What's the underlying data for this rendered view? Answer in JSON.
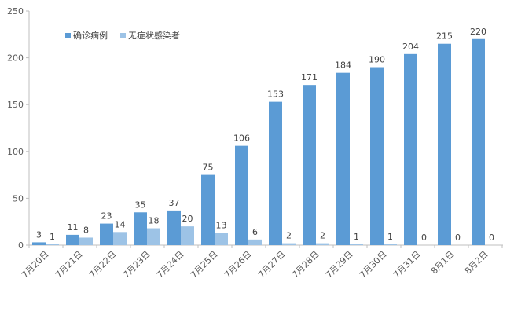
{
  "chart_data": {
    "type": "bar",
    "categories": [
      "7月20日",
      "7月21日",
      "7月22日",
      "7月23日",
      "7月24日",
      "7月25日",
      "7月26日",
      "7月27日",
      "7月28日",
      "7月29日",
      "7月30日",
      "7月31日",
      "8月1日",
      "8月2日"
    ],
    "series": [
      {
        "name": "确诊病例",
        "color": "#5b9bd5",
        "values": [
          3,
          11,
          23,
          35,
          37,
          75,
          106,
          153,
          171,
          184,
          190,
          204,
          215,
          220
        ]
      },
      {
        "name": "无症状感染者",
        "color": "#9dc3e6",
        "values": [
          1,
          8,
          14,
          18,
          20,
          13,
          6,
          2,
          2,
          1,
          1,
          0,
          0,
          0
        ]
      }
    ],
    "ylim": [
      0,
      250
    ],
    "yticks": [
      0,
      50,
      100,
      150,
      200,
      250
    ],
    "grid": false,
    "legend_position": "top-left",
    "axis_color": "#bfbfbf"
  }
}
